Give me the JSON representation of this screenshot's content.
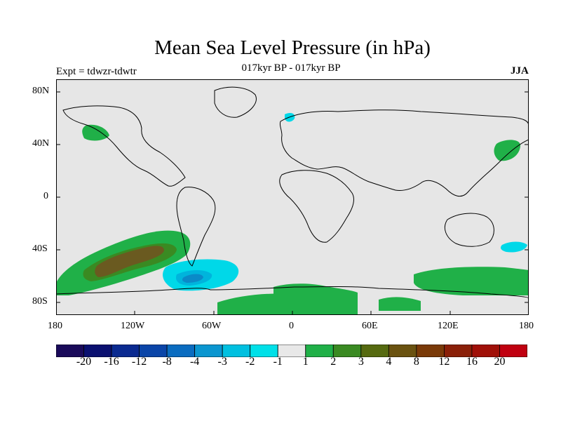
{
  "title": "Mean Sea Level Pressure (in hPa)",
  "subtitle": "017kyr BP - 017kyr BP",
  "expt_label": "Expt = tdwzr-tdwtr",
  "season": "JJA",
  "axes": {
    "lat_ticks": [
      "80N",
      "40N",
      "0",
      "40S",
      "80S"
    ],
    "lon_ticks": [
      "180",
      "120W",
      "60W",
      "0",
      "60E",
      "120E",
      "180"
    ]
  },
  "colorbar": {
    "colors": [
      "#1a0a5a",
      "#0a1070",
      "#0a2a90",
      "#0a45a8",
      "#0a6cc0",
      "#0a96d0",
      "#00c0e0",
      "#00e0e8",
      "#e8e8e8",
      "#20b048",
      "#3a8a22",
      "#566a10",
      "#6a5210",
      "#7a3a08",
      "#8a2008",
      "#a01008",
      "#c00010"
    ],
    "labels": [
      "-20",
      "-16",
      "-12",
      "-8",
      "-4",
      "-3",
      "-2",
      "-1",
      "1",
      "2",
      "3",
      "4",
      "8",
      "12",
      "16",
      "20"
    ]
  },
  "fill_colors": {
    "background": "#e6e6e6",
    "neg_light": "#00d8e8",
    "neg_mid": "#00b4dc",
    "neg_dark": "#0a8ac8",
    "pos_light": "#20b048",
    "pos_mid": "#3a8a22",
    "pos_dark": "#6a5a20"
  }
}
